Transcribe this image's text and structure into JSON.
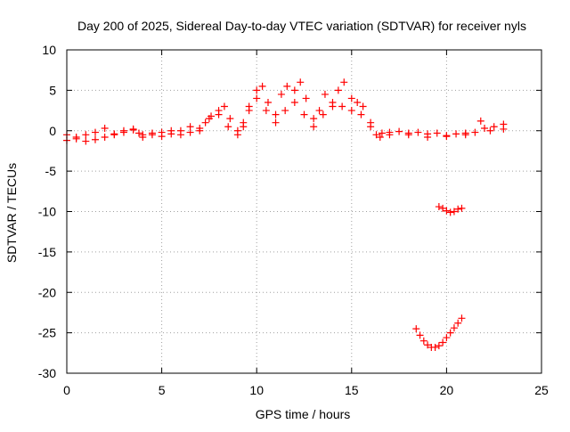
{
  "chart_data": {
    "type": "scatter",
    "title": "Day 200 of 2025, Sidereal Day-to-day VTEC variation (SDTVAR) for receiver nyls",
    "xlabel": "GPS time / hours",
    "ylabel": "SDTVAR / TECUs",
    "xlim": [
      0,
      25
    ],
    "ylim": [
      -30,
      10
    ],
    "xticks": [
      0,
      5,
      10,
      15,
      20,
      25
    ],
    "yticks": [
      -30,
      -25,
      -20,
      -15,
      -10,
      -5,
      0,
      5,
      10
    ],
    "grid": true,
    "marker": "plus",
    "series_color": "#ff0000",
    "series": [
      {
        "name": "main-trace",
        "x": [
          0.0,
          0.5,
          1.0,
          1.5,
          2.0,
          2.5,
          3.0,
          3.5,
          3.8,
          4.0,
          4.5,
          5.0,
          5.5,
          6.0,
          6.5,
          7.0,
          7.3,
          7.6,
          8.0,
          8.3,
          8.6,
          9.0,
          9.3,
          9.6,
          10.0,
          10.3,
          10.6,
          11.0,
          11.3,
          11.6,
          12.0,
          12.3,
          12.6,
          13.0,
          13.3,
          13.6,
          14.0,
          14.3,
          14.6,
          15.0,
          15.3,
          15.6,
          16.0,
          16.3,
          16.6,
          17.0,
          17.5,
          18.0,
          18.5,
          19.0,
          19.5,
          20.0,
          20.5,
          21.0,
          21.5,
          22.0,
          22.5,
          23.0
        ],
        "y": [
          -1.2,
          -1.0,
          -1.3,
          -1.1,
          -0.8,
          -0.5,
          0.0,
          0.2,
          -0.3,
          -0.5,
          -0.3,
          -0.2,
          -0.4,
          0.0,
          0.5,
          0.3,
          1.0,
          1.8,
          2.5,
          3.0,
          1.5,
          0.0,
          0.5,
          3.0,
          5.0,
          5.5,
          3.5,
          2.0,
          4.5,
          5.5,
          5.0,
          6.0,
          4.0,
          1.5,
          2.5,
          4.5,
          3.5,
          5.0,
          6.0,
          4.0,
          3.5,
          3.0,
          1.0,
          -0.5,
          -0.3,
          -0.2,
          -0.1,
          -0.3,
          -0.2,
          -0.4,
          -0.3,
          -0.6,
          -0.4,
          -0.5,
          -0.2,
          0.3,
          0.5,
          0.2
        ]
      },
      {
        "name": "secondary-trace",
        "x": [
          0.0,
          0.5,
          1.0,
          1.5,
          2.0,
          2.5,
          3.0,
          3.5,
          4.0,
          4.5,
          5.0,
          5.5,
          6.0,
          6.5,
          7.0,
          7.5,
          8.0,
          8.5,
          9.0,
          9.3,
          9.6,
          10.0,
          10.5,
          11.0,
          11.5,
          12.0,
          12.5,
          13.0,
          13.5,
          14.0,
          14.5,
          15.0,
          15.5,
          16.0,
          16.5,
          17.0,
          18.0,
          19.0,
          20.0,
          21.0,
          21.8,
          22.3,
          23.0
        ],
        "y": [
          -0.5,
          -0.8,
          -0.5,
          -0.2,
          0.3,
          -0.4,
          -0.2,
          0.1,
          -0.8,
          -0.5,
          -0.7,
          0.0,
          -0.5,
          -0.2,
          0.0,
          1.5,
          2.0,
          0.5,
          -0.5,
          1.0,
          2.5,
          4.0,
          2.5,
          1.0,
          2.5,
          3.5,
          2.0,
          0.5,
          2.0,
          3.0,
          3.0,
          2.5,
          2.0,
          0.5,
          -0.8,
          -0.5,
          -0.5,
          -0.8,
          -0.7,
          -0.3,
          1.2,
          0.0,
          0.8
        ]
      },
      {
        "name": "isolated-segment",
        "x": [
          19.6,
          19.8,
          20.0,
          20.2,
          20.4,
          20.6,
          20.8
        ],
        "y": [
          -9.4,
          -9.6,
          -9.9,
          -10.1,
          -10.0,
          -9.7,
          -9.6
        ]
      },
      {
        "name": "low-arc",
        "x": [
          18.4,
          18.6,
          18.8,
          19.0,
          19.2,
          19.4,
          19.6,
          19.8,
          20.0,
          20.2,
          20.4,
          20.6,
          20.8
        ],
        "y": [
          -24.5,
          -25.3,
          -26.0,
          -26.5,
          -26.8,
          -26.8,
          -26.6,
          -26.2,
          -25.6,
          -25.0,
          -24.4,
          -23.8,
          -23.2
        ]
      }
    ]
  }
}
